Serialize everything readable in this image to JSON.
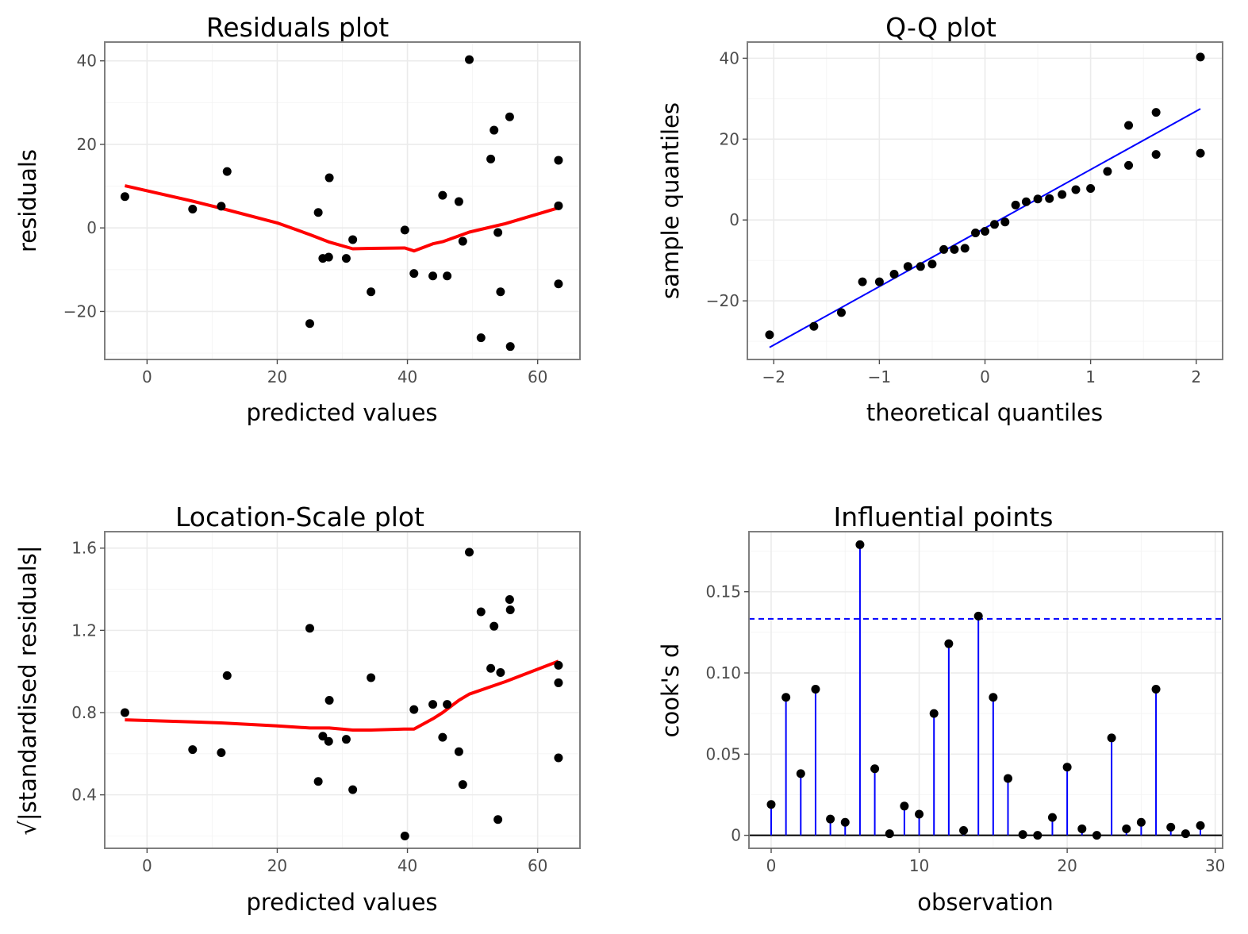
{
  "chart_data": [
    {
      "id": "residuals",
      "type": "scatter",
      "title": "Residuals plot",
      "xlabel": "predicted values",
      "ylabel": "residuals",
      "xlim": [
        -6.5,
        66.5
      ],
      "ylim": [
        -31.5,
        44.5
      ],
      "xticks": [
        0,
        20,
        40,
        60
      ],
      "yticks": [
        -20,
        0,
        20,
        40
      ],
      "ytick_labels": [
        "−20",
        "0",
        "20",
        "40"
      ],
      "grid": true,
      "points_color": "#000000",
      "points": [
        [
          -3.4,
          7.5
        ],
        [
          7.0,
          4.5
        ],
        [
          11.4,
          5.2
        ],
        [
          12.3,
          13.5
        ],
        [
          25.0,
          -22.9
        ],
        [
          26.3,
          3.7
        ],
        [
          27.0,
          -7.3
        ],
        [
          27.9,
          -7.0
        ],
        [
          28.0,
          12.0
        ],
        [
          30.6,
          -7.3
        ],
        [
          31.6,
          -2.8
        ],
        [
          34.4,
          -15.3
        ],
        [
          39.6,
          -0.5
        ],
        [
          41.0,
          -10.9
        ],
        [
          43.9,
          -11.5
        ],
        [
          45.4,
          7.8
        ],
        [
          46.1,
          -11.5
        ],
        [
          47.9,
          6.3
        ],
        [
          48.5,
          -3.2
        ],
        [
          49.5,
          40.3
        ],
        [
          51.3,
          -26.3
        ],
        [
          52.8,
          16.5
        ],
        [
          53.3,
          23.4
        ],
        [
          53.9,
          -1.1
        ],
        [
          54.3,
          -15.3
        ],
        [
          55.7,
          26.6
        ],
        [
          55.8,
          -28.4
        ],
        [
          63.2,
          16.2
        ],
        [
          63.2,
          5.3
        ],
        [
          63.2,
          -13.4
        ]
      ],
      "trend": {
        "color": "#ff0000",
        "points": [
          [
            -3.4,
            10.1
          ],
          [
            7.0,
            6.4
          ],
          [
            11.4,
            4.7
          ],
          [
            20.0,
            1.2
          ],
          [
            25.0,
            -1.6
          ],
          [
            28.0,
            -3.4
          ],
          [
            31.6,
            -5.0
          ],
          [
            34.4,
            -4.9
          ],
          [
            39.6,
            -4.8
          ],
          [
            41.0,
            -5.5
          ],
          [
            43.9,
            -3.8
          ],
          [
            45.4,
            -3.3
          ],
          [
            47.9,
            -1.9
          ],
          [
            49.5,
            -1.0
          ],
          [
            55.0,
            1.0
          ],
          [
            63.2,
            4.8
          ]
        ]
      }
    },
    {
      "id": "qq",
      "type": "scatter",
      "title": "Q-Q plot",
      "xlabel": "theoretical quantiles",
      "ylabel": "sample quantiles",
      "xlim": [
        -2.25,
        2.25
      ],
      "ylim": [
        -34.5,
        44.0
      ],
      "xticks": [
        -2,
        -1,
        0,
        1,
        2
      ],
      "xtick_labels": [
        "−2",
        "−1",
        "0",
        "1",
        "2"
      ],
      "yticks": [
        -20,
        0,
        20,
        40
      ],
      "ytick_labels": [
        "−20",
        "0",
        "20",
        "40"
      ],
      "grid": true,
      "points_color": "#000000",
      "points": [
        [
          -2.04,
          -28.4
        ],
        [
          -1.62,
          -26.3
        ],
        [
          -1.36,
          -22.9
        ],
        [
          -1.16,
          -15.3
        ],
        [
          -1.0,
          -15.3
        ],
        [
          -0.86,
          -13.4
        ],
        [
          -0.73,
          -11.5
        ],
        [
          -0.61,
          -11.5
        ],
        [
          -0.5,
          -10.9
        ],
        [
          -0.39,
          -7.3
        ],
        [
          -0.29,
          -7.3
        ],
        [
          -0.19,
          -7.0
        ],
        [
          -0.09,
          -3.2
        ],
        [
          0.0,
          -2.8
        ],
        [
          0.09,
          -1.1
        ],
        [
          0.19,
          -0.5
        ],
        [
          0.29,
          3.7
        ],
        [
          0.39,
          4.5
        ],
        [
          0.5,
          5.2
        ],
        [
          0.61,
          5.3
        ],
        [
          0.73,
          6.3
        ],
        [
          0.86,
          7.5
        ],
        [
          1.0,
          7.8
        ],
        [
          1.16,
          12.0
        ],
        [
          1.36,
          13.5
        ],
        [
          1.62,
          16.2
        ],
        [
          2.04,
          16.5
        ],
        [
          1.36,
          23.4
        ],
        [
          1.62,
          26.6
        ],
        [
          2.04,
          40.3
        ]
      ],
      "reference_line": {
        "color": "#0000ff",
        "from": [
          -2.04,
          -31.5
        ],
        "to": [
          2.04,
          27.5
        ]
      }
    },
    {
      "id": "location_scale",
      "type": "scatter",
      "title": "Location-Scale plot",
      "xlabel": "predicted values",
      "ylabel": "√|standardised residuals|",
      "xlim": [
        -6.5,
        66.5
      ],
      "ylim": [
        0.14,
        1.68
      ],
      "xticks": [
        0,
        20,
        40,
        60
      ],
      "yticks": [
        0.4,
        0.8,
        1.2,
        1.6
      ],
      "ytick_labels": [
        "0.4",
        "0.8",
        "1.2",
        "1.6"
      ],
      "grid": true,
      "points_color": "#000000",
      "points": [
        [
          -3.4,
          0.8
        ],
        [
          7.0,
          0.62
        ],
        [
          11.4,
          0.605
        ],
        [
          12.3,
          0.98
        ],
        [
          25.0,
          1.21
        ],
        [
          26.3,
          0.465
        ],
        [
          27.0,
          0.685
        ],
        [
          27.9,
          0.66
        ],
        [
          28.0,
          0.86
        ],
        [
          30.6,
          0.67
        ],
        [
          31.6,
          0.425
        ],
        [
          34.4,
          0.97
        ],
        [
          39.6,
          0.2
        ],
        [
          41.0,
          0.815
        ],
        [
          43.9,
          0.84
        ],
        [
          45.4,
          0.68
        ],
        [
          46.1,
          0.84
        ],
        [
          47.9,
          0.61
        ],
        [
          48.5,
          0.45
        ],
        [
          49.5,
          1.58
        ],
        [
          51.3,
          1.29
        ],
        [
          52.8,
          1.015
        ],
        [
          53.3,
          1.22
        ],
        [
          53.9,
          0.28
        ],
        [
          54.3,
          0.995
        ],
        [
          55.7,
          1.35
        ],
        [
          55.8,
          1.3
        ],
        [
          63.2,
          1.03
        ],
        [
          63.2,
          0.945
        ],
        [
          63.2,
          0.58
        ]
      ],
      "trend": {
        "color": "#ff0000",
        "points": [
          [
            -3.4,
            0.765
          ],
          [
            7.0,
            0.755
          ],
          [
            11.4,
            0.75
          ],
          [
            20.0,
            0.735
          ],
          [
            25.0,
            0.725
          ],
          [
            28.0,
            0.725
          ],
          [
            31.6,
            0.715
          ],
          [
            34.4,
            0.715
          ],
          [
            39.6,
            0.72
          ],
          [
            41.0,
            0.72
          ],
          [
            43.9,
            0.77
          ],
          [
            45.4,
            0.8
          ],
          [
            47.9,
            0.86
          ],
          [
            49.5,
            0.89
          ],
          [
            55.0,
            0.95
          ],
          [
            63.2,
            1.05
          ]
        ]
      }
    },
    {
      "id": "influence",
      "type": "scatter",
      "title": "Influential points",
      "xlabel": "observation",
      "ylabel": "cook's d",
      "xlim": [
        -1.5,
        30.5
      ],
      "ylim": [
        -0.008,
        0.187
      ],
      "xticks": [
        0,
        10,
        20,
        30
      ],
      "yticks": [
        0,
        0.05,
        0.1,
        0.15
      ],
      "ytick_labels": [
        "0",
        "0.05",
        "0.10",
        "0.15"
      ],
      "grid": true,
      "stem_color": "#0000ff",
      "points_color": "#000000",
      "threshold": 0.1333,
      "threshold_color": "#0000ff",
      "points": [
        [
          0,
          0.019
        ],
        [
          1,
          0.085
        ],
        [
          2,
          0.038
        ],
        [
          3,
          0.09
        ],
        [
          4,
          0.01
        ],
        [
          5,
          0.008
        ],
        [
          6,
          0.179
        ],
        [
          7,
          0.041
        ],
        [
          8,
          0.001
        ],
        [
          9,
          0.018
        ],
        [
          10,
          0.013
        ],
        [
          11,
          0.075
        ],
        [
          12,
          0.118
        ],
        [
          13,
          0.003
        ],
        [
          14,
          0.135
        ],
        [
          15,
          0.085
        ],
        [
          16,
          0.035
        ],
        [
          17,
          0.0005
        ],
        [
          18,
          0.0
        ],
        [
          19,
          0.011
        ],
        [
          20,
          0.042
        ],
        [
          21,
          0.004
        ],
        [
          22,
          0.0
        ],
        [
          23,
          0.06
        ],
        [
          24,
          0.004
        ],
        [
          25,
          0.008
        ],
        [
          26,
          0.09
        ],
        [
          27,
          0.005
        ],
        [
          28,
          0.001
        ],
        [
          29,
          0.006
        ]
      ]
    }
  ]
}
